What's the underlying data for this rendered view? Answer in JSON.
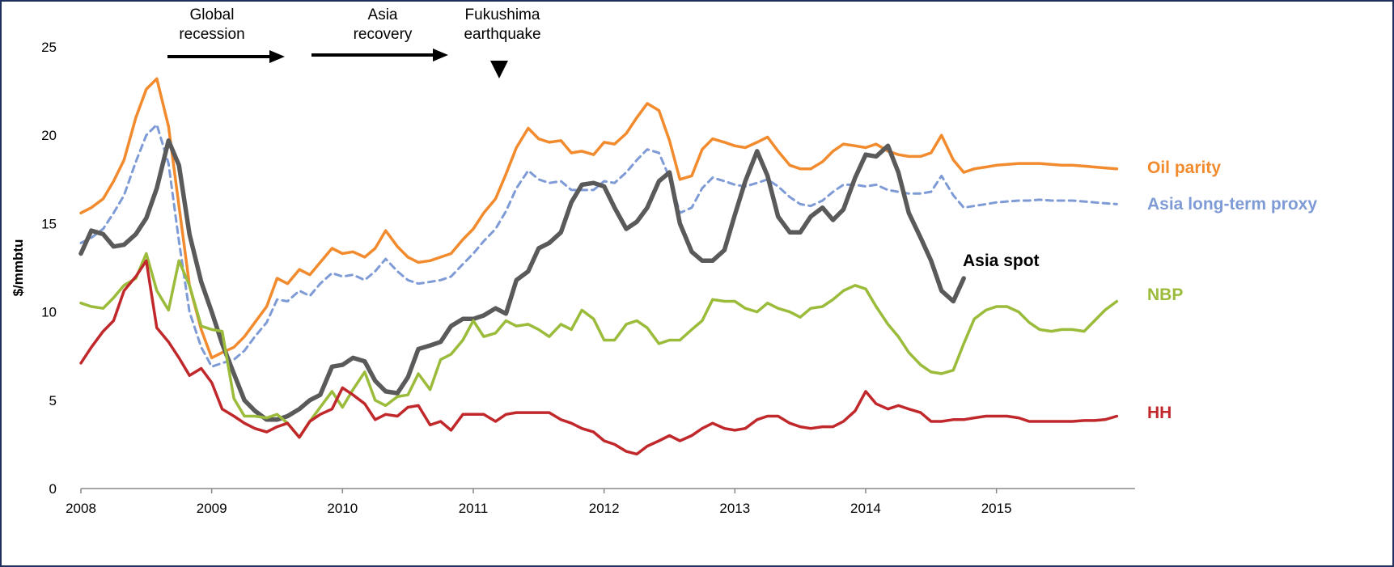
{
  "chart_data": {
    "type": "line",
    "y_label": "$/mmbtu",
    "annotations": [
      {
        "lines": [
          "Global",
          "recession"
        ]
      },
      {
        "lines": [
          "Asia",
          "recovery"
        ]
      },
      {
        "lines": [
          "Fukushima",
          "earthquake"
        ]
      }
    ],
    "xlim": [
      2008,
      2016.06
    ],
    "xticks": [
      2008,
      2009,
      2010,
      2011,
      2012,
      2013,
      2014,
      2015
    ],
    "ylim": [
      0,
      25
    ],
    "yticks": [
      0,
      5,
      10,
      15,
      20,
      25
    ],
    "grid": false,
    "x": [
      2008.0,
      2008.08,
      2008.17,
      2008.25,
      2008.33,
      2008.42,
      2008.5,
      2008.58,
      2008.67,
      2008.75,
      2008.83,
      2008.92,
      2009.0,
      2009.08,
      2009.17,
      2009.25,
      2009.33,
      2009.42,
      2009.5,
      2009.58,
      2009.67,
      2009.75,
      2009.83,
      2009.92,
      2010.0,
      2010.08,
      2010.17,
      2010.25,
      2010.33,
      2010.42,
      2010.5,
      2010.58,
      2010.67,
      2010.75,
      2010.83,
      2010.92,
      2011.0,
      2011.08,
      2011.17,
      2011.25,
      2011.33,
      2011.42,
      2011.5,
      2011.58,
      2011.67,
      2011.75,
      2011.83,
      2011.92,
      2012.0,
      2012.08,
      2012.17,
      2012.25,
      2012.33,
      2012.42,
      2012.5,
      2012.58,
      2012.67,
      2012.75,
      2012.83,
      2012.92,
      2013.0,
      2013.08,
      2013.17,
      2013.25,
      2013.33,
      2013.42,
      2013.5,
      2013.58,
      2013.67,
      2013.75,
      2013.83,
      2013.92,
      2014.0,
      2014.08,
      2014.17,
      2014.25,
      2014.33,
      2014.42,
      2014.5,
      2014.58,
      2014.67,
      2014.75,
      2014.83,
      2014.92,
      2015.0,
      2015.08,
      2015.17,
      2015.25,
      2015.33,
      2015.42,
      2015.5,
      2015.58,
      2015.67,
      2015.75,
      2015.83,
      2015.92
    ],
    "series": [
      {
        "name": "Oil parity",
        "color": "#f28a2e",
        "dash": false,
        "width": 3.5,
        "values": [
          15.6,
          15.9,
          16.4,
          17.4,
          18.6,
          21.0,
          22.6,
          23.2,
          20.5,
          16.0,
          11.5,
          9.0,
          7.4,
          7.7,
          8.0,
          8.6,
          9.4,
          10.3,
          11.9,
          11.6,
          12.4,
          12.1,
          12.8,
          13.6,
          13.3,
          13.4,
          13.1,
          13.6,
          14.6,
          13.7,
          13.1,
          12.8,
          12.9,
          13.1,
          13.3,
          14.1,
          14.7,
          15.6,
          16.4,
          17.8,
          19.3,
          20.4,
          19.8,
          19.6,
          19.7,
          19.0,
          19.1,
          18.9,
          19.6,
          19.5,
          20.1,
          21.0,
          21.8,
          21.4,
          19.7,
          17.5,
          17.7,
          19.2,
          19.8,
          19.6,
          19.4,
          19.3,
          19.6,
          19.9,
          19.1,
          18.3,
          18.1,
          18.1,
          18.5,
          19.1,
          19.5,
          19.4,
          19.3,
          19.5,
          19.1,
          18.9,
          18.8,
          18.8,
          19.0,
          20.0,
          18.6,
          17.9,
          18.1,
          18.2,
          18.3,
          18.35,
          18.4,
          18.4,
          18.4,
          18.35,
          18.3,
          18.3,
          18.25,
          18.2,
          18.15,
          18.1
        ]
      },
      {
        "name": "Asia long-term proxy",
        "color": "#7f9bd6",
        "dash": true,
        "width": 3,
        "values": [
          13.9,
          14.2,
          14.7,
          15.6,
          16.6,
          18.5,
          20.0,
          20.6,
          18.4,
          14.0,
          10.0,
          8.0,
          6.9,
          7.1,
          7.3,
          7.8,
          8.6,
          9.4,
          10.7,
          10.6,
          11.2,
          10.9,
          11.6,
          12.2,
          12.0,
          12.1,
          11.8,
          12.3,
          13.0,
          12.3,
          11.8,
          11.6,
          11.7,
          11.8,
          12.0,
          12.7,
          13.3,
          14.0,
          14.7,
          15.7,
          17.0,
          18.0,
          17.5,
          17.3,
          17.4,
          16.9,
          16.9,
          16.9,
          17.4,
          17.3,
          17.9,
          18.6,
          19.2,
          19.0,
          17.6,
          15.6,
          15.9,
          17.0,
          17.6,
          17.4,
          17.2,
          17.1,
          17.3,
          17.5,
          17.1,
          16.5,
          16.1,
          16.0,
          16.3,
          16.8,
          17.2,
          17.2,
          17.1,
          17.2,
          16.9,
          16.8,
          16.7,
          16.7,
          16.8,
          17.7,
          16.6,
          15.9,
          16.0,
          16.1,
          16.2,
          16.25,
          16.3,
          16.3,
          16.35,
          16.3,
          16.3,
          16.3,
          16.25,
          16.2,
          16.15,
          16.1
        ]
      },
      {
        "name": "Asia spot",
        "color": "#5a5a5a",
        "dash": false,
        "width": 5.5,
        "values": [
          13.3,
          14.6,
          14.4,
          13.7,
          13.8,
          14.4,
          15.3,
          17.0,
          19.7,
          18.3,
          14.4,
          11.7,
          10.0,
          8.2,
          6.5,
          5.0,
          4.4,
          3.9,
          3.9,
          4.1,
          4.5,
          5.0,
          5.3,
          6.9,
          7.0,
          7.4,
          7.2,
          6.1,
          5.5,
          5.4,
          6.3,
          7.9,
          8.1,
          8.3,
          9.2,
          9.6,
          9.6,
          9.8,
          10.2,
          9.9,
          11.8,
          12.3,
          13.6,
          13.9,
          14.5,
          16.2,
          17.2,
          17.3,
          17.1,
          15.9,
          14.7,
          15.1,
          15.9,
          17.4,
          17.9,
          15.0,
          13.4,
          12.9,
          12.9,
          13.5,
          15.5,
          17.4,
          19.1,
          17.7,
          15.4,
          14.5,
          14.5,
          15.4,
          15.9,
          15.2,
          15.8,
          17.6,
          18.9,
          18.8,
          19.4,
          17.9,
          15.6,
          14.2,
          12.9,
          11.2,
          10.6,
          11.9,
          null,
          null,
          null,
          null,
          null,
          null,
          null,
          null,
          null,
          null,
          null,
          null,
          null,
          null
        ]
      },
      {
        "name": "NBP",
        "color": "#9bbb3b",
        "dash": false,
        "width": 3.5,
        "values": [
          10.5,
          10.3,
          10.2,
          10.8,
          11.5,
          11.9,
          13.3,
          11.2,
          10.1,
          12.9,
          11.5,
          9.2,
          9.0,
          8.9,
          5.1,
          4.1,
          4.1,
          4.0,
          4.2,
          3.7,
          2.9,
          3.8,
          4.6,
          5.5,
          4.6,
          5.6,
          6.6,
          5.0,
          4.7,
          5.2,
          5.3,
          6.5,
          5.6,
          7.3,
          7.6,
          8.4,
          9.5,
          8.6,
          8.8,
          9.5,
          9.2,
          9.3,
          9.0,
          8.6,
          9.3,
          9.0,
          10.1,
          9.6,
          8.4,
          8.4,
          9.3,
          9.5,
          9.1,
          8.2,
          8.4,
          8.4,
          9.0,
          9.5,
          10.7,
          10.6,
          10.6,
          10.2,
          10.0,
          10.5,
          10.2,
          10.0,
          9.7,
          10.2,
          10.3,
          10.7,
          11.2,
          11.5,
          11.3,
          10.3,
          9.3,
          8.6,
          7.7,
          7.0,
          6.6,
          6.5,
          6.7,
          8.2,
          9.6,
          10.1,
          10.3,
          10.3,
          10.0,
          9.4,
          9.0,
          8.9,
          9.0,
          9.0,
          8.9,
          9.5,
          10.1,
          10.6
        ]
      },
      {
        "name": "HH",
        "color": "#c0282b",
        "dash": false,
        "width": 3.5,
        "values": [
          7.1,
          8.0,
          8.9,
          9.5,
          11.2,
          12.0,
          12.9,
          9.1,
          8.3,
          7.4,
          6.4,
          6.8,
          6.0,
          4.5,
          4.1,
          3.7,
          3.4,
          3.2,
          3.5,
          3.7,
          2.9,
          3.8,
          4.2,
          4.5,
          5.7,
          5.3,
          4.8,
          3.9,
          4.2,
          4.1,
          4.6,
          4.7,
          3.6,
          3.8,
          3.3,
          4.2,
          4.2,
          4.2,
          3.8,
          4.2,
          4.3,
          4.3,
          4.3,
          4.3,
          3.9,
          3.7,
          3.4,
          3.2,
          2.7,
          2.5,
          2.1,
          1.95,
          2.4,
          2.7,
          3.0,
          2.7,
          3.0,
          3.4,
          3.7,
          3.4,
          3.3,
          3.4,
          3.9,
          4.1,
          4.1,
          3.7,
          3.5,
          3.4,
          3.5,
          3.5,
          3.8,
          4.4,
          5.5,
          4.8,
          4.5,
          4.7,
          4.5,
          4.3,
          3.8,
          3.8,
          3.9,
          3.9,
          4.0,
          4.1,
          4.1,
          4.1,
          4.0,
          3.8,
          3.8,
          3.8,
          3.8,
          3.8,
          3.85,
          3.85,
          3.9,
          4.1
        ]
      }
    ]
  }
}
